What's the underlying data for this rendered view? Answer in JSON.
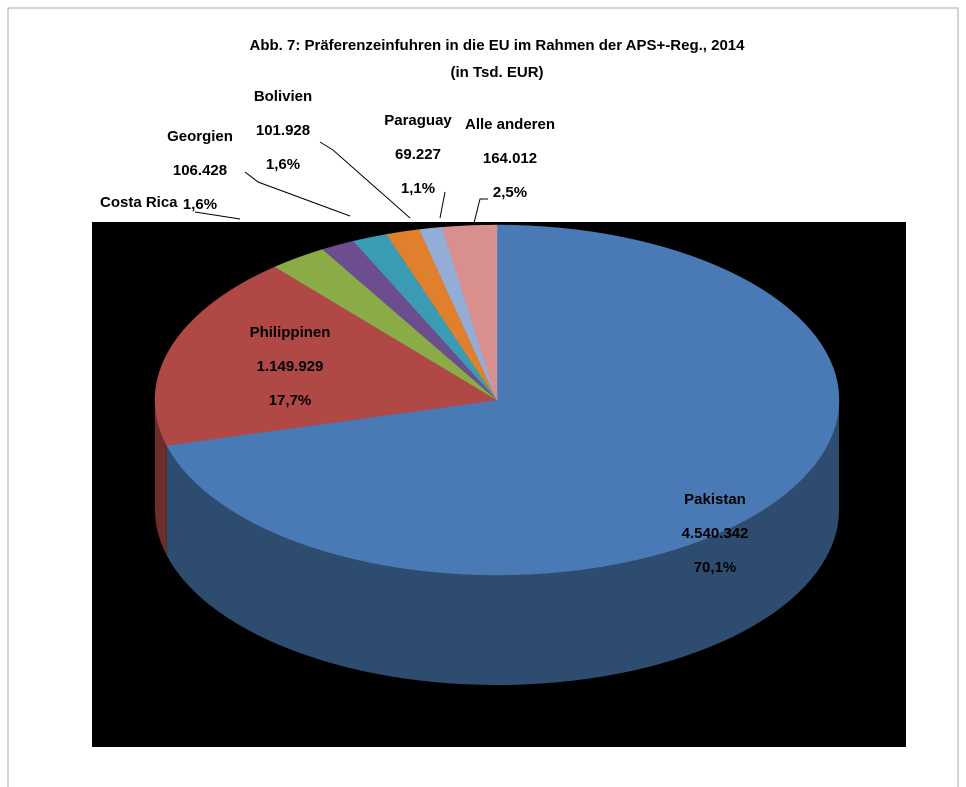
{
  "chart_data": {
    "type": "pie3d",
    "title": "Abb. 7: Präferenzeinfuhren in die EU im Rahmen der APS+-Reg., 2014",
    "subtitle": "(in Tsd. EUR)",
    "categories": [
      "Pakistan",
      "Philippinen",
      null,
      "Costa Rica",
      "Georgien",
      "Bolivien",
      "Paraguay",
      "Alle anderen"
    ],
    "values": [
      4540342,
      1149929,
      175000,
      104000,
      106428,
      101928,
      69227,
      164012
    ],
    "value_labels": [
      "4.540.342",
      "1.149.929",
      null,
      null,
      "106.428",
      "101.928",
      "69.227",
      "164.012"
    ],
    "percent_labels": [
      "70,1%",
      "17,7%",
      null,
      null,
      "1,6%",
      "1,6%",
      "1,1%",
      "2,5%"
    ],
    "colors": [
      "#4a7ab5",
      "#b04846",
      "#8aab45",
      "#6c4e8e",
      "#3b9bb3",
      "#e07f2c",
      "#94add6",
      "#d98f8d"
    ]
  }
}
